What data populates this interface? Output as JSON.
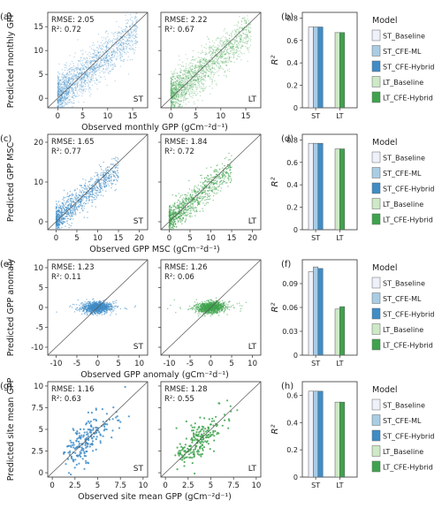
{
  "figure": {
    "legend_title": "Model",
    "legend_items": [
      {
        "label": "ST_Baseline",
        "color": "#eef1fa"
      },
      {
        "label": "ST_CFE-ML",
        "color": "#a9cde4"
      },
      {
        "label": "ST_CFE-Hybrid",
        "color": "#3f8cc7"
      },
      {
        "label": "LT_Baseline",
        "color": "#cde9c6"
      },
      {
        "label": "LT_CFE-Hybrid",
        "color": "#3fa34e"
      }
    ],
    "r2_label": "R²",
    "st_point_color": "#3f8cc7",
    "lt_point_color": "#3fa34e"
  },
  "chart_data": [
    {
      "type": "scatter",
      "panel": "(a)",
      "ylabel": "Predicted monthly GPP",
      "xlabel": "Observed monthly GPP (gCm⁻²d⁻¹)",
      "xlim": [
        -2,
        18
      ],
      "ylim": [
        -2,
        18
      ],
      "xticks": [
        0,
        5,
        10,
        15
      ],
      "yticks": [
        0,
        5,
        10,
        15
      ],
      "subplots": [
        {
          "tag": "ST",
          "rmse_text": "RMSE: 2.05",
          "r2_text": "R²: 0.72"
        },
        {
          "tag": "LT",
          "rmse_text": "RMSE: 2.22",
          "r2_text": "R²: 0.67"
        }
      ]
    },
    {
      "type": "bar",
      "panel": "(b)",
      "ylabel": "R²",
      "categories": [
        "ST",
        "LT"
      ],
      "ylim": [
        0,
        0.85
      ],
      "yticks": [
        0,
        0.2,
        0.4,
        0.6,
        0.8
      ],
      "series": [
        {
          "name": "ST_Baseline",
          "values": [
            0.72,
            null
          ]
        },
        {
          "name": "ST_CFE-ML",
          "values": [
            0.72,
            null
          ]
        },
        {
          "name": "ST_CFE-Hybrid",
          "values": [
            0.72,
            null
          ]
        },
        {
          "name": "LT_Baseline",
          "values": [
            null,
            0.67
          ]
        },
        {
          "name": "LT_CFE-Hybrid",
          "values": [
            null,
            0.67
          ]
        }
      ]
    },
    {
      "type": "scatter",
      "panel": "(c)",
      "ylabel": "Predicted GPP MSC",
      "xlabel": "Observed GPP MSC (gCm⁻²d⁻¹)",
      "xlim": [
        -2,
        22
      ],
      "ylim": [
        -2,
        22
      ],
      "xticks": [
        0,
        5,
        10,
        15,
        20
      ],
      "yticks": [
        0,
        10,
        20
      ],
      "subplots": [
        {
          "tag": "ST",
          "rmse_text": "RMSE: 1.65",
          "r2_text": "R²: 0.77"
        },
        {
          "tag": "LT",
          "rmse_text": "RMSE: 1.84",
          "r2_text": "R²: 0.72"
        }
      ]
    },
    {
      "type": "bar",
      "panel": "(d)",
      "ylabel": "R²",
      "categories": [
        "ST",
        "LT"
      ],
      "ylim": [
        0,
        0.85
      ],
      "yticks": [
        0,
        0.2,
        0.4,
        0.6,
        0.8
      ],
      "series": [
        {
          "name": "ST_Baseline",
          "values": [
            0.77,
            null
          ]
        },
        {
          "name": "ST_CFE-ML",
          "values": [
            0.77,
            null
          ]
        },
        {
          "name": "ST_CFE-Hybrid",
          "values": [
            0.77,
            null
          ]
        },
        {
          "name": "LT_Baseline",
          "values": [
            null,
            0.72
          ]
        },
        {
          "name": "LT_CFE-Hybrid",
          "values": [
            null,
            0.72
          ]
        }
      ]
    },
    {
      "type": "scatter",
      "panel": "(e)",
      "ylabel": "Predicted GPP anomaly",
      "xlabel": "Observed GPP anomaly (gCm⁻²d⁻¹)",
      "xlim": [
        -12,
        12
      ],
      "ylim": [
        -12,
        12
      ],
      "xticks": [
        -10,
        -5,
        0,
        5,
        10
      ],
      "yticks": [
        -10,
        -5,
        0,
        5,
        10
      ],
      "subplots": [
        {
          "tag": "ST",
          "rmse_text": "RMSE: 1.23",
          "r2_text": "R²: 0.11"
        },
        {
          "tag": "LT",
          "rmse_text": "RMSE: 1.26",
          "r2_text": "R²: 0.06"
        }
      ]
    },
    {
      "type": "bar",
      "panel": "(f)",
      "ylabel": "R²",
      "categories": [
        "ST",
        "LT"
      ],
      "ylim": [
        0,
        0.12
      ],
      "yticks": [
        0,
        0.03,
        0.06,
        0.09
      ],
      "series": [
        {
          "name": "ST_Baseline",
          "values": [
            0.105,
            null
          ]
        },
        {
          "name": "ST_CFE-ML",
          "values": [
            0.111,
            null
          ]
        },
        {
          "name": "ST_CFE-Hybrid",
          "values": [
            0.109,
            null
          ]
        },
        {
          "name": "LT_Baseline",
          "values": [
            null,
            0.058
          ]
        },
        {
          "name": "LT_CFE-Hybrid",
          "values": [
            null,
            0.061
          ]
        }
      ]
    },
    {
      "type": "scatter",
      "panel": "(g)",
      "ylabel": "Predicted site mean GPP",
      "xlabel": "Observed site mean GPP (gCm⁻²d⁻¹)",
      "xlim": [
        -0.5,
        10.5
      ],
      "ylim": [
        -0.5,
        10.5
      ],
      "xticks": [
        0,
        2.5,
        5,
        7.5,
        10
      ],
      "yticks": [
        0,
        2.5,
        5,
        7.5,
        10
      ],
      "subplots": [
        {
          "tag": "ST",
          "rmse_text": "RMSE: 1.16",
          "r2_text": "R²: 0.63"
        },
        {
          "tag": "LT",
          "rmse_text": "RMSE: 1.28",
          "r2_text": "R²: 0.55"
        }
      ]
    },
    {
      "type": "bar",
      "panel": "(h)",
      "ylabel": "R²",
      "categories": [
        "ST",
        "LT"
      ],
      "ylim": [
        0,
        0.7
      ],
      "yticks": [
        0,
        0.2,
        0.4,
        0.6
      ],
      "series": [
        {
          "name": "ST_Baseline",
          "values": [
            0.63,
            null
          ]
        },
        {
          "name": "ST_CFE-ML",
          "values": [
            0.63,
            null
          ]
        },
        {
          "name": "ST_CFE-Hybrid",
          "values": [
            0.63,
            null
          ]
        },
        {
          "name": "LT_Baseline",
          "values": [
            null,
            0.55
          ]
        },
        {
          "name": "LT_CFE-Hybrid",
          "values": [
            null,
            0.55
          ]
        }
      ]
    }
  ]
}
